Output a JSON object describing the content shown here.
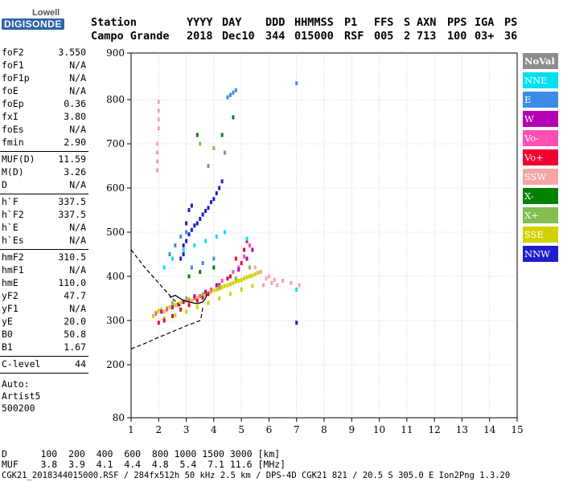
{
  "logo": {
    "top": "Lowell",
    "bottom": "DIGISONDE"
  },
  "header": {
    "labels": [
      "Station",
      "YYYY",
      "DAY",
      "DDD",
      "HHMMSS",
      "P1",
      "FFS",
      "S",
      "AXN",
      "PPS",
      "IGA",
      "PS"
    ],
    "values": [
      "Campo Grande",
      "2018",
      "Dec10",
      "344",
      "015000",
      "RSF",
      "005",
      "2",
      "713",
      "100",
      "03+",
      "36"
    ]
  },
  "params": {
    "group1": [
      {
        "name": "foF2",
        "value": "3.550"
      },
      {
        "name": "foF1",
        "value": "N/A"
      },
      {
        "name": "foF1p",
        "value": "N/A"
      },
      {
        "name": "foE",
        "value": "N/A"
      },
      {
        "name": "foEp",
        "value": "0.36"
      },
      {
        "name": "fxI",
        "value": "3.80"
      },
      {
        "name": "foEs",
        "value": "N/A"
      },
      {
        "name": "fmin",
        "value": "2.90"
      }
    ],
    "group2": [
      {
        "name": "MUF(D)",
        "value": "11.59"
      },
      {
        "name": "M(D)",
        "value": "3.26"
      },
      {
        "name": "D",
        "value": "N/A"
      }
    ],
    "group3": [
      {
        "name": "h`F",
        "value": "337.5"
      },
      {
        "name": "h`F2",
        "value": "337.5"
      },
      {
        "name": "h`E",
        "value": "N/A"
      },
      {
        "name": "h`Es",
        "value": "N/A"
      }
    ],
    "group4": [
      {
        "name": "hmF2",
        "value": "310.5"
      },
      {
        "name": "hmF1",
        "value": "N/A"
      },
      {
        "name": "hmE",
        "value": "110.0"
      },
      {
        "name": "yF2",
        "value": "47.7"
      },
      {
        "name": "yF1",
        "value": "N/A"
      },
      {
        "name": "yE",
        "value": "20.0"
      },
      {
        "name": "B0",
        "value": "50.8"
      },
      {
        "name": "B1",
        "value": "1.67"
      }
    ],
    "clevel": {
      "name": "C-level",
      "value": "44"
    },
    "auto": [
      "Auto:",
      "Artist5",
      "500200"
    ]
  },
  "legend": [
    {
      "label": "NoVal",
      "color": "#8c8c8c"
    },
    {
      "label": "NNE",
      "color": "#00e0f0"
    },
    {
      "label": "E",
      "color": "#3c8ce6"
    },
    {
      "label": "W",
      "color": "#b400b4"
    },
    {
      "label": "Vo-",
      "color": "#ff50b4"
    },
    {
      "label": "Vo+",
      "color": "#f00032"
    },
    {
      "label": "SSW",
      "color": "#f5a5a5"
    },
    {
      "label": "X-",
      "color": "#008200"
    },
    {
      "label": "X+",
      "color": "#82be50"
    },
    {
      "label": "SSE",
      "color": "#d2d200"
    },
    {
      "label": "NNW",
      "color": "#1e1ecc"
    }
  ],
  "footer": {
    "d_row": "D      100  200  400  600  800 1000 1500 3000 [km]",
    "muf_row": "MUF    3.8  3.9  4.1  4.4  4.8  5.4  7.1 11.6 [MHz]",
    "file_row": "CGK21_2018344015000.RSF / 284fx512h 50 kHz 2.5 km / DPS-4D CGK21 821 / 20.5 S 305.0 E Ion2Png 1.3.20"
  },
  "chart_data": {
    "type": "scatter",
    "xlabel": "",
    "ylabel": "",
    "xlim": [
      1,
      15
    ],
    "ylim": [
      80,
      900
    ],
    "x_ticks": [
      "1",
      "2",
      "3",
      "4",
      "5",
      "6",
      "7",
      "8",
      "9",
      "10",
      "11",
      "12",
      "13",
      "14",
      "15"
    ],
    "y_ticks": [
      80,
      200,
      300,
      400,
      500,
      600,
      700,
      800,
      900
    ],
    "y_tick_labels": [
      "80",
      "200",
      "300",
      "400",
      "500",
      "600",
      "700",
      "800",
      "900"
    ],
    "grid": true,
    "legend_position": "right",
    "series": [
      {
        "name": "SSE",
        "points": [
          [
            1.8,
            310
          ],
          [
            1.9,
            318
          ],
          [
            2.0,
            322
          ],
          [
            2.1,
            325
          ],
          [
            2.2,
            320
          ],
          [
            2.3,
            328
          ],
          [
            2.4,
            330
          ],
          [
            2.5,
            332
          ],
          [
            2.6,
            335
          ],
          [
            2.7,
            338
          ],
          [
            2.8,
            340
          ],
          [
            2.9,
            342
          ],
          [
            3.0,
            345
          ],
          [
            3.1,
            348
          ],
          [
            3.2,
            345
          ],
          [
            3.3,
            350
          ],
          [
            3.4,
            352
          ],
          [
            3.5,
            355
          ],
          [
            3.6,
            358
          ],
          [
            3.7,
            360
          ],
          [
            3.8,
            362
          ],
          [
            3.9,
            365
          ],
          [
            4.0,
            368
          ],
          [
            4.1,
            370
          ],
          [
            4.2,
            372
          ],
          [
            4.3,
            375
          ],
          [
            4.4,
            378
          ],
          [
            4.5,
            380
          ],
          [
            4.6,
            382
          ],
          [
            4.7,
            385
          ],
          [
            4.8,
            388
          ],
          [
            4.9,
            390
          ],
          [
            5.0,
            392
          ],
          [
            5.1,
            395
          ],
          [
            5.2,
            398
          ],
          [
            5.3,
            400
          ],
          [
            5.4,
            402
          ],
          [
            5.5,
            405
          ],
          [
            5.6,
            408
          ],
          [
            5.7,
            410
          ],
          [
            2.2,
            305
          ],
          [
            2.6,
            312
          ],
          [
            3.0,
            320
          ],
          [
            3.4,
            330
          ],
          [
            3.8,
            340
          ],
          [
            4.2,
            350
          ],
          [
            4.6,
            360
          ],
          [
            5.0,
            370
          ],
          [
            5.4,
            378
          ]
        ]
      },
      {
        "name": "SSW",
        "points": [
          [
            1.95,
            640
          ],
          [
            1.95,
            660
          ],
          [
            1.95,
            680
          ],
          [
            1.95,
            700
          ],
          [
            2.0,
            735
          ],
          [
            2.0,
            755
          ],
          [
            2.0,
            775
          ],
          [
            2.0,
            795
          ],
          [
            5.8,
            380
          ],
          [
            5.9,
            395
          ],
          [
            6.0,
            400
          ],
          [
            6.1,
            385
          ],
          [
            6.2,
            392
          ],
          [
            6.3,
            380
          ],
          [
            6.5,
            390
          ],
          [
            6.8,
            385
          ],
          [
            7.1,
            380
          ],
          [
            5.5,
            420
          ],
          [
            5.7,
            410
          ]
        ]
      },
      {
        "name": "NNW",
        "points": [
          [
            2.9,
            470
          ],
          [
            3.0,
            480
          ],
          [
            3.1,
            495
          ],
          [
            3.2,
            505
          ],
          [
            3.3,
            515
          ],
          [
            3.4,
            520
          ],
          [
            3.5,
            530
          ],
          [
            3.6,
            540
          ],
          [
            3.7,
            548
          ],
          [
            3.8,
            555
          ],
          [
            3.9,
            568
          ],
          [
            4.0,
            575
          ],
          [
            4.1,
            588
          ],
          [
            4.2,
            600
          ],
          [
            4.3,
            615
          ],
          [
            3.1,
            550
          ],
          [
            3.2,
            560
          ],
          [
            3.0,
            520
          ],
          [
            2.8,
            440
          ],
          [
            2.9,
            450
          ],
          [
            7.0,
            295
          ]
        ]
      },
      {
        "name": "Vo+",
        "points": [
          [
            2.0,
            295
          ],
          [
            2.2,
            300
          ],
          [
            2.5,
            310
          ],
          [
            2.8,
            325
          ],
          [
            3.1,
            335
          ],
          [
            3.4,
            345
          ],
          [
            3.8,
            360
          ],
          [
            4.2,
            380
          ],
          [
            4.6,
            400
          ],
          [
            5.0,
            430
          ],
          [
            5.1,
            460
          ],
          [
            5.2,
            480
          ],
          [
            4.8,
            440
          ],
          [
            3.6,
            352
          ]
        ]
      },
      {
        "name": "Vo-",
        "points": [
          [
            1.9,
            315
          ],
          [
            2.3,
            325
          ],
          [
            2.7,
            335
          ],
          [
            3.1,
            345
          ],
          [
            3.5,
            355
          ],
          [
            3.9,
            370
          ],
          [
            4.3,
            390
          ],
          [
            4.7,
            410
          ],
          [
            5.1,
            445
          ],
          [
            5.3,
            470
          ],
          [
            4.9,
            420
          ],
          [
            3.3,
            350
          ]
        ]
      },
      {
        "name": "W",
        "points": [
          [
            2.1,
            320
          ],
          [
            2.5,
            330
          ],
          [
            2.9,
            342
          ],
          [
            3.3,
            355
          ],
          [
            3.7,
            365
          ],
          [
            4.1,
            380
          ],
          [
            4.5,
            395
          ],
          [
            4.9,
            415
          ],
          [
            5.2,
            440
          ],
          [
            5.4,
            460
          ]
        ]
      },
      {
        "name": "E",
        "points": [
          [
            2.4,
            450
          ],
          [
            2.6,
            470
          ],
          [
            2.8,
            490
          ],
          [
            3.0,
            500
          ],
          [
            4.5,
            805
          ],
          [
            4.6,
            810
          ],
          [
            4.7,
            815
          ],
          [
            4.8,
            820
          ],
          [
            7.0,
            835
          ],
          [
            3.2,
            420
          ],
          [
            3.6,
            430
          ],
          [
            4.0,
            440
          ]
        ]
      },
      {
        "name": "NNE",
        "points": [
          [
            2.2,
            420
          ],
          [
            2.5,
            440
          ],
          [
            2.9,
            460
          ],
          [
            3.3,
            470
          ],
          [
            3.7,
            480
          ],
          [
            4.1,
            490
          ],
          [
            4.4,
            500
          ],
          [
            5.2,
            485
          ],
          [
            7.0,
            370
          ]
        ]
      },
      {
        "name": "X-",
        "points": [
          [
            4.7,
            760
          ],
          [
            4.3,
            720
          ],
          [
            3.4,
            720
          ],
          [
            3.1,
            400
          ],
          [
            3.5,
            410
          ],
          [
            4.0,
            420
          ]
        ]
      },
      {
        "name": "X+",
        "points": [
          [
            2.5,
            340
          ],
          [
            3.0,
            350
          ],
          [
            3.6,
            360
          ],
          [
            4.2,
            375
          ],
          [
            4.8,
            395
          ],
          [
            5.3,
            420
          ],
          [
            3.5,
            700
          ],
          [
            4.0,
            690
          ]
        ]
      },
      {
        "name": "NoVal",
        "points": [
          [
            4.4,
            680
          ],
          [
            3.8,
            650
          ]
        ]
      }
    ],
    "annotation_curves": {
      "solid": [
        [
          2.4,
          352
        ],
        [
          2.6,
          357
        ],
        [
          2.85,
          347
        ],
        [
          3.1,
          342
        ],
        [
          3.4,
          338
        ],
        [
          3.6,
          342
        ],
        [
          3.7,
          350
        ],
        [
          3.75,
          360
        ]
      ],
      "dashed_upper": [
        [
          1,
          460
        ],
        [
          1.5,
          420
        ],
        [
          2.0,
          385
        ],
        [
          2.5,
          350
        ],
        [
          2.8,
          332
        ]
      ],
      "dashed_lower": [
        [
          1,
          236
        ],
        [
          1.5,
          248
        ],
        [
          2.0,
          262
        ],
        [
          2.5,
          275
        ],
        [
          3.0,
          288
        ],
        [
          3.5,
          300
        ],
        [
          3.55,
          310
        ],
        [
          3.6,
          330
        ]
      ]
    }
  }
}
